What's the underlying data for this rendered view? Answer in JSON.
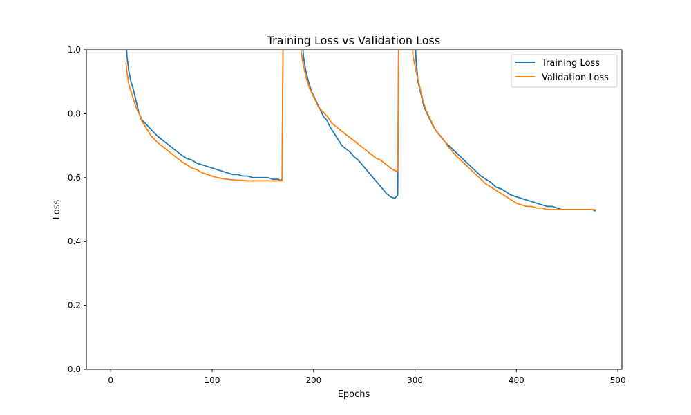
{
  "chart_data": {
    "type": "line",
    "title": "Training Loss vs Validation Loss",
    "xlabel": "Epochs",
    "ylabel": "Loss",
    "xlim": [
      -24,
      504
    ],
    "ylim": [
      0,
      1
    ],
    "xticks": [
      0,
      100,
      200,
      300,
      400,
      500
    ],
    "yticks": [
      0.0,
      0.2,
      0.4,
      0.6,
      0.8,
      1.0
    ],
    "xtick_labels": [
      "0",
      "100",
      "200",
      "300",
      "400",
      "500"
    ],
    "ytick_labels": [
      "0.0",
      "0.2",
      "0.4",
      "0.6",
      "0.8",
      "1.0"
    ],
    "legend_position": "upper right",
    "grid": false,
    "series": [
      {
        "name": "Training Loss",
        "color": "#1f77b4",
        "points": [
          [
            15,
            1.05
          ],
          [
            16,
            0.98
          ],
          [
            18,
            0.93
          ],
          [
            20,
            0.9
          ],
          [
            22,
            0.88
          ],
          [
            25,
            0.84
          ],
          [
            28,
            0.8
          ],
          [
            31,
            0.78
          ],
          [
            34,
            0.77
          ],
          [
            37,
            0.76
          ],
          [
            40,
            0.75
          ],
          [
            43,
            0.74
          ],
          [
            46,
            0.73
          ],
          [
            50,
            0.72
          ],
          [
            54,
            0.71
          ],
          [
            58,
            0.7
          ],
          [
            62,
            0.69
          ],
          [
            66,
            0.68
          ],
          [
            70,
            0.67
          ],
          [
            75,
            0.66
          ],
          [
            80,
            0.655
          ],
          [
            85,
            0.645
          ],
          [
            90,
            0.64
          ],
          [
            95,
            0.635
          ],
          [
            100,
            0.63
          ],
          [
            105,
            0.625
          ],
          [
            110,
            0.62
          ],
          [
            115,
            0.615
          ],
          [
            120,
            0.61
          ],
          [
            125,
            0.61
          ],
          [
            130,
            0.605
          ],
          [
            135,
            0.605
          ],
          [
            140,
            0.6
          ],
          [
            145,
            0.6
          ],
          [
            150,
            0.6
          ],
          [
            155,
            0.6
          ],
          [
            160,
            0.595
          ],
          [
            165,
            0.595
          ],
          [
            168,
            0.59
          ],
          [
            169,
            0.6
          ],
          [
            170,
            1.08
          ],
          [
            188,
            1.08
          ],
          [
            190,
            0.98
          ],
          [
            192,
            0.94
          ],
          [
            195,
            0.9
          ],
          [
            198,
            0.87
          ],
          [
            201,
            0.85
          ],
          [
            204,
            0.83
          ],
          [
            207,
            0.81
          ],
          [
            210,
            0.79
          ],
          [
            213,
            0.78
          ],
          [
            216,
            0.76
          ],
          [
            220,
            0.74
          ],
          [
            224,
            0.72
          ],
          [
            228,
            0.7
          ],
          [
            232,
            0.69
          ],
          [
            236,
            0.68
          ],
          [
            240,
            0.665
          ],
          [
            244,
            0.655
          ],
          [
            248,
            0.64
          ],
          [
            252,
            0.625
          ],
          [
            256,
            0.61
          ],
          [
            260,
            0.595
          ],
          [
            264,
            0.58
          ],
          [
            268,
            0.565
          ],
          [
            272,
            0.55
          ],
          [
            276,
            0.54
          ],
          [
            280,
            0.535
          ],
          [
            283,
            0.545
          ],
          [
            284,
            1.08
          ],
          [
            300,
            1.05
          ],
          [
            301,
            0.97
          ],
          [
            303,
            0.9
          ],
          [
            306,
            0.86
          ],
          [
            309,
            0.82
          ],
          [
            312,
            0.8
          ],
          [
            315,
            0.78
          ],
          [
            318,
            0.76
          ],
          [
            321,
            0.745
          ],
          [
            325,
            0.73
          ],
          [
            330,
            0.71
          ],
          [
            335,
            0.695
          ],
          [
            340,
            0.68
          ],
          [
            345,
            0.665
          ],
          [
            350,
            0.65
          ],
          [
            355,
            0.635
          ],
          [
            360,
            0.62
          ],
          [
            365,
            0.605
          ],
          [
            370,
            0.595
          ],
          [
            375,
            0.585
          ],
          [
            380,
            0.57
          ],
          [
            385,
            0.565
          ],
          [
            390,
            0.555
          ],
          [
            395,
            0.545
          ],
          [
            400,
            0.54
          ],
          [
            405,
            0.535
          ],
          [
            410,
            0.53
          ],
          [
            415,
            0.525
          ],
          [
            420,
            0.52
          ],
          [
            425,
            0.515
          ],
          [
            430,
            0.51
          ],
          [
            435,
            0.51
          ],
          [
            440,
            0.505
          ],
          [
            445,
            0.5
          ],
          [
            450,
            0.5
          ],
          [
            455,
            0.5
          ],
          [
            460,
            0.5
          ],
          [
            465,
            0.5
          ],
          [
            470,
            0.5
          ],
          [
            475,
            0.5
          ],
          [
            478,
            0.495
          ]
        ]
      },
      {
        "name": "Validation Loss",
        "color": "#ff7f0e",
        "points": [
          [
            15,
            0.96
          ],
          [
            16,
            0.93
          ],
          [
            18,
            0.89
          ],
          [
            20,
            0.87
          ],
          [
            22,
            0.85
          ],
          [
            25,
            0.82
          ],
          [
            28,
            0.8
          ],
          [
            31,
            0.775
          ],
          [
            34,
            0.76
          ],
          [
            37,
            0.745
          ],
          [
            40,
            0.73
          ],
          [
            43,
            0.72
          ],
          [
            46,
            0.71
          ],
          [
            50,
            0.7
          ],
          [
            54,
            0.69
          ],
          [
            58,
            0.68
          ],
          [
            62,
            0.67
          ],
          [
            66,
            0.66
          ],
          [
            70,
            0.65
          ],
          [
            75,
            0.64
          ],
          [
            80,
            0.63
          ],
          [
            85,
            0.625
          ],
          [
            90,
            0.615
          ],
          [
            95,
            0.61
          ],
          [
            100,
            0.605
          ],
          [
            105,
            0.6
          ],
          [
            110,
            0.597
          ],
          [
            115,
            0.595
          ],
          [
            120,
            0.593
          ],
          [
            125,
            0.592
          ],
          [
            130,
            0.591
          ],
          [
            135,
            0.59
          ],
          [
            140,
            0.59
          ],
          [
            145,
            0.59
          ],
          [
            150,
            0.59
          ],
          [
            155,
            0.59
          ],
          [
            160,
            0.59
          ],
          [
            165,
            0.59
          ],
          [
            168,
            0.59
          ],
          [
            169,
            0.59
          ],
          [
            170,
            1.08
          ],
          [
            186,
            1.08
          ],
          [
            188,
            0.99
          ],
          [
            190,
            0.95
          ],
          [
            193,
            0.91
          ],
          [
            196,
            0.88
          ],
          [
            199,
            0.86
          ],
          [
            202,
            0.84
          ],
          [
            205,
            0.82
          ],
          [
            208,
            0.81
          ],
          [
            211,
            0.8
          ],
          [
            214,
            0.79
          ],
          [
            218,
            0.77
          ],
          [
            222,
            0.76
          ],
          [
            226,
            0.75
          ],
          [
            230,
            0.74
          ],
          [
            234,
            0.73
          ],
          [
            238,
            0.72
          ],
          [
            242,
            0.71
          ],
          [
            246,
            0.7
          ],
          [
            250,
            0.69
          ],
          [
            254,
            0.68
          ],
          [
            258,
            0.67
          ],
          [
            262,
            0.66
          ],
          [
            266,
            0.655
          ],
          [
            270,
            0.645
          ],
          [
            274,
            0.635
          ],
          [
            278,
            0.625
          ],
          [
            282,
            0.62
          ],
          [
            283,
            0.62
          ],
          [
            284,
            1.08
          ],
          [
            297,
            1.08
          ],
          [
            298,
            0.98
          ],
          [
            300,
            0.95
          ],
          [
            302,
            0.92
          ],
          [
            305,
            0.88
          ],
          [
            308,
            0.84
          ],
          [
            311,
            0.81
          ],
          [
            314,
            0.79
          ],
          [
            317,
            0.77
          ],
          [
            320,
            0.75
          ],
          [
            324,
            0.735
          ],
          [
            328,
            0.72
          ],
          [
            332,
            0.7
          ],
          [
            336,
            0.685
          ],
          [
            340,
            0.67
          ],
          [
            345,
            0.655
          ],
          [
            350,
            0.64
          ],
          [
            355,
            0.625
          ],
          [
            360,
            0.61
          ],
          [
            365,
            0.595
          ],
          [
            370,
            0.58
          ],
          [
            375,
            0.57
          ],
          [
            380,
            0.56
          ],
          [
            385,
            0.55
          ],
          [
            390,
            0.54
          ],
          [
            395,
            0.53
          ],
          [
            400,
            0.52
          ],
          [
            405,
            0.515
          ],
          [
            410,
            0.51
          ],
          [
            415,
            0.51
          ],
          [
            420,
            0.505
          ],
          [
            425,
            0.505
          ],
          [
            430,
            0.5
          ],
          [
            435,
            0.5
          ],
          [
            440,
            0.5
          ],
          [
            445,
            0.5
          ],
          [
            450,
            0.5
          ],
          [
            455,
            0.5
          ],
          [
            460,
            0.5
          ],
          [
            465,
            0.5
          ],
          [
            470,
            0.5
          ],
          [
            475,
            0.5
          ],
          [
            478,
            0.5
          ]
        ]
      }
    ]
  }
}
